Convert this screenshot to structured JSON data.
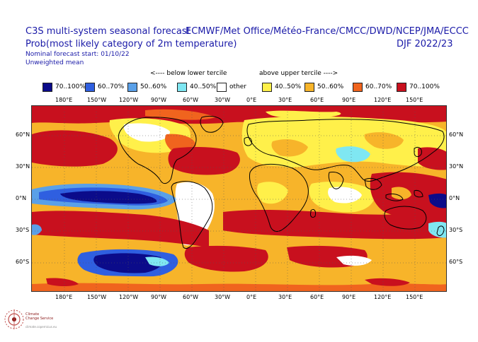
{
  "header": {
    "left_line1": "C3S multi-system seasonal forecast",
    "left_line2": "Prob(most likely category of 2m temperature)",
    "left_line3": "Nominal forecast start: 01/10/22",
    "left_line4": "Unweighted mean",
    "right_line1": "ECMWF/Met Office/Météo-France/CMCC/DWD/NCEP/JMA/ECCC",
    "right_line2": "DJF 2022/23"
  },
  "legend": {
    "below_header": "<---- below lower tercile",
    "above_header": "above upper tercile ---->",
    "items": [
      {
        "label": "70..100%",
        "color": "#0b0b8a"
      },
      {
        "label": "60..70%",
        "color": "#2f5fe0"
      },
      {
        "label": "50..60%",
        "color": "#5aa0e8"
      },
      {
        "label": "40..50%",
        "color": "#7fe7f2"
      },
      {
        "label": "other",
        "color": "#ffffff"
      },
      {
        "label": "40..50%",
        "color": "#fff04a"
      },
      {
        "label": "50..60%",
        "color": "#f7b42a"
      },
      {
        "label": "60..70%",
        "color": "#f0641e"
      },
      {
        "label": "70..100%",
        "color": "#c8101e"
      }
    ]
  },
  "map": {
    "lon_ticks": [
      "180°E",
      "150°W",
      "120°W",
      "90°W",
      "60°W",
      "30°W",
      "0°E",
      "30°E",
      "60°E",
      "90°E",
      "120°E",
      "150°E"
    ],
    "lat_ticks": [
      "60°N",
      "30°N",
      "0°N",
      "30°S",
      "60°S"
    ]
  },
  "logo": {
    "line1": "Climate",
    "line2": "Change Service",
    "line3": "climate.copernicus.eu"
  }
}
